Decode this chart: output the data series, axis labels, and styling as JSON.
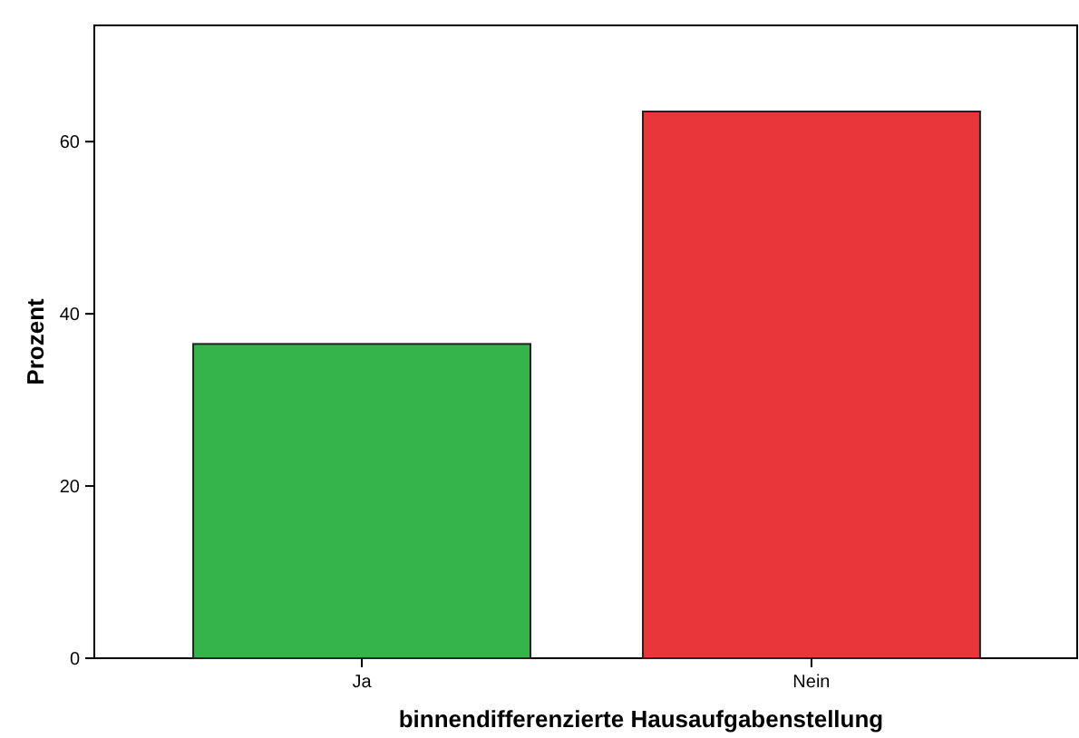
{
  "chart_data": {
    "type": "bar",
    "xlabel": "binnendifferenzierte Hausaufgabenstellung",
    "ylabel": "Prozent",
    "categories": [
      "Ja",
      "Nein"
    ],
    "values": [
      36.5,
      63.5
    ],
    "colors": [
      "#35b44a",
      "#e8363b"
    ],
    "ylim": [
      0,
      73.5
    ],
    "yticks": [
      0,
      20,
      40,
      60
    ],
    "grid": false
  }
}
